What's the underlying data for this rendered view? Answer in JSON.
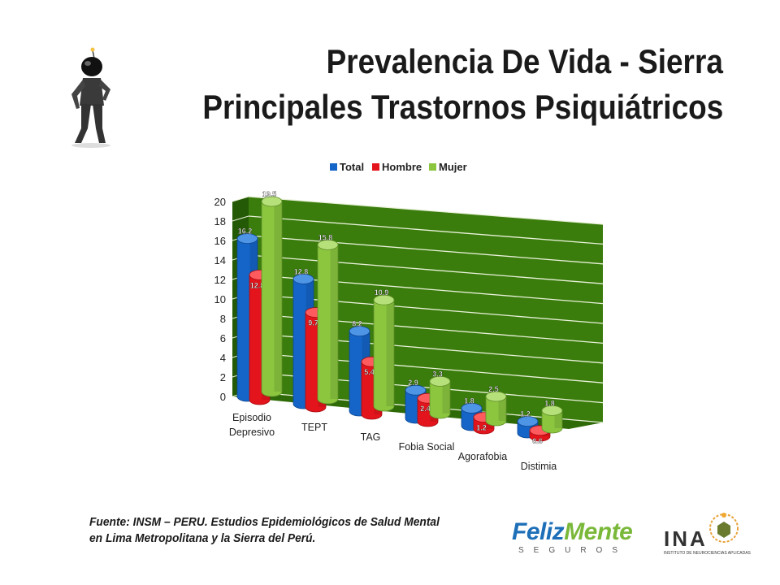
{
  "slide": {
    "title_line1": "Prevalencia De Vida - Sierra",
    "title_line2": "Principales Trastornos Psiquiátricos",
    "source_note": "Fuente: INSM – PERU. Estudios Epidemiológicos de Salud Mental en Lima Metropolitana  y la Sierra del Perú."
  },
  "logos": {
    "feliz_word1": "Feliz",
    "feliz_word2": "Mente",
    "feliz_sub": "SEGUROS",
    "ina_letters": "INA",
    "ina_sub": "INSTITUTO DE NEUROCIENCIAS APLICADAS"
  },
  "colors": {
    "total": "#1565c8",
    "hombre": "#e3141b",
    "mujer": "#8cc63f",
    "plot_bg": "#3a7d0c",
    "gridline": "#e8f0d8"
  },
  "chart_data": {
    "type": "bar",
    "categories": [
      [
        "Episodio",
        "Depresivo"
      ],
      [
        "TEPT"
      ],
      [
        "TAG"
      ],
      [
        "Fobia Social"
      ],
      [
        "Agorafobia"
      ],
      [
        "Distimia"
      ]
    ],
    "series": [
      {
        "name": "Total",
        "values": [
          16.2,
          12.8,
          8.2,
          2.9,
          1.8,
          1.2
        ]
      },
      {
        "name": "Hombre",
        "values": [
          12.8,
          9.7,
          5.4,
          2.4,
          1.2,
          0.6
        ]
      },
      {
        "name": "Mujer",
        "values": [
          19.5,
          15.8,
          10.9,
          3.3,
          2.5,
          1.8
        ]
      }
    ],
    "yticks": [
      0,
      2,
      4,
      6,
      8,
      10,
      12,
      14,
      16,
      18,
      20
    ],
    "ylim": [
      0,
      20
    ],
    "legend_position": "top",
    "grid": true,
    "style": "3d-cylinder"
  }
}
